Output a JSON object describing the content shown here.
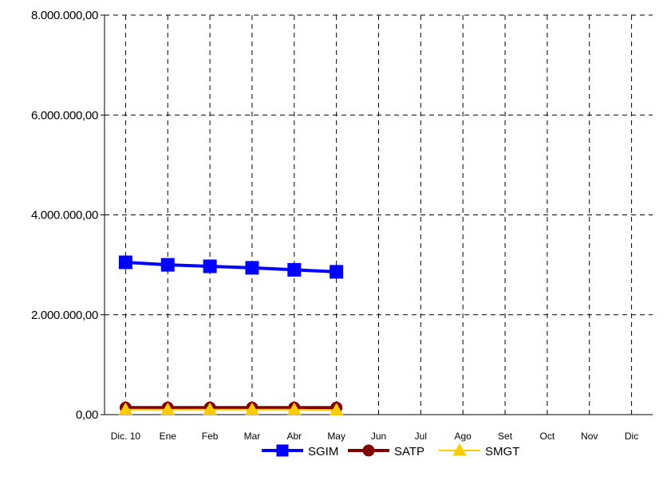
{
  "chart_data": {
    "type": "line",
    "categories": [
      "Dic. 10",
      "Ene",
      "Feb",
      "Mar",
      "Abr",
      "May",
      "Jun",
      "Jul",
      "Ago",
      "Set",
      "Oct",
      "Nov",
      "Dic"
    ],
    "yticks": [
      "0,00",
      "2.000.000,00",
      "4.000.000,00",
      "6.000.000,00",
      "8.000.000,00"
    ],
    "ylim": [
      0,
      8000000
    ],
    "grid": true,
    "legend_position": "bottom",
    "series": [
      {
        "name": "SGIM",
        "color": "#0000ff",
        "marker": "square",
        "values": [
          3050000,
          3000000,
          2970000,
          2940000,
          2900000,
          2860000,
          null,
          null,
          null,
          null,
          null,
          null,
          null
        ]
      },
      {
        "name": "SATP",
        "color": "#800000",
        "marker": "circle",
        "values": [
          140000,
          140000,
          140000,
          140000,
          140000,
          140000,
          null,
          null,
          null,
          null,
          null,
          null,
          null
        ]
      },
      {
        "name": "SMGT",
        "color": "#ffcc00",
        "marker": "triangle",
        "values": [
          100000,
          100000,
          100000,
          100000,
          100000,
          90000,
          null,
          null,
          null,
          null,
          null,
          null,
          null
        ]
      }
    ]
  }
}
